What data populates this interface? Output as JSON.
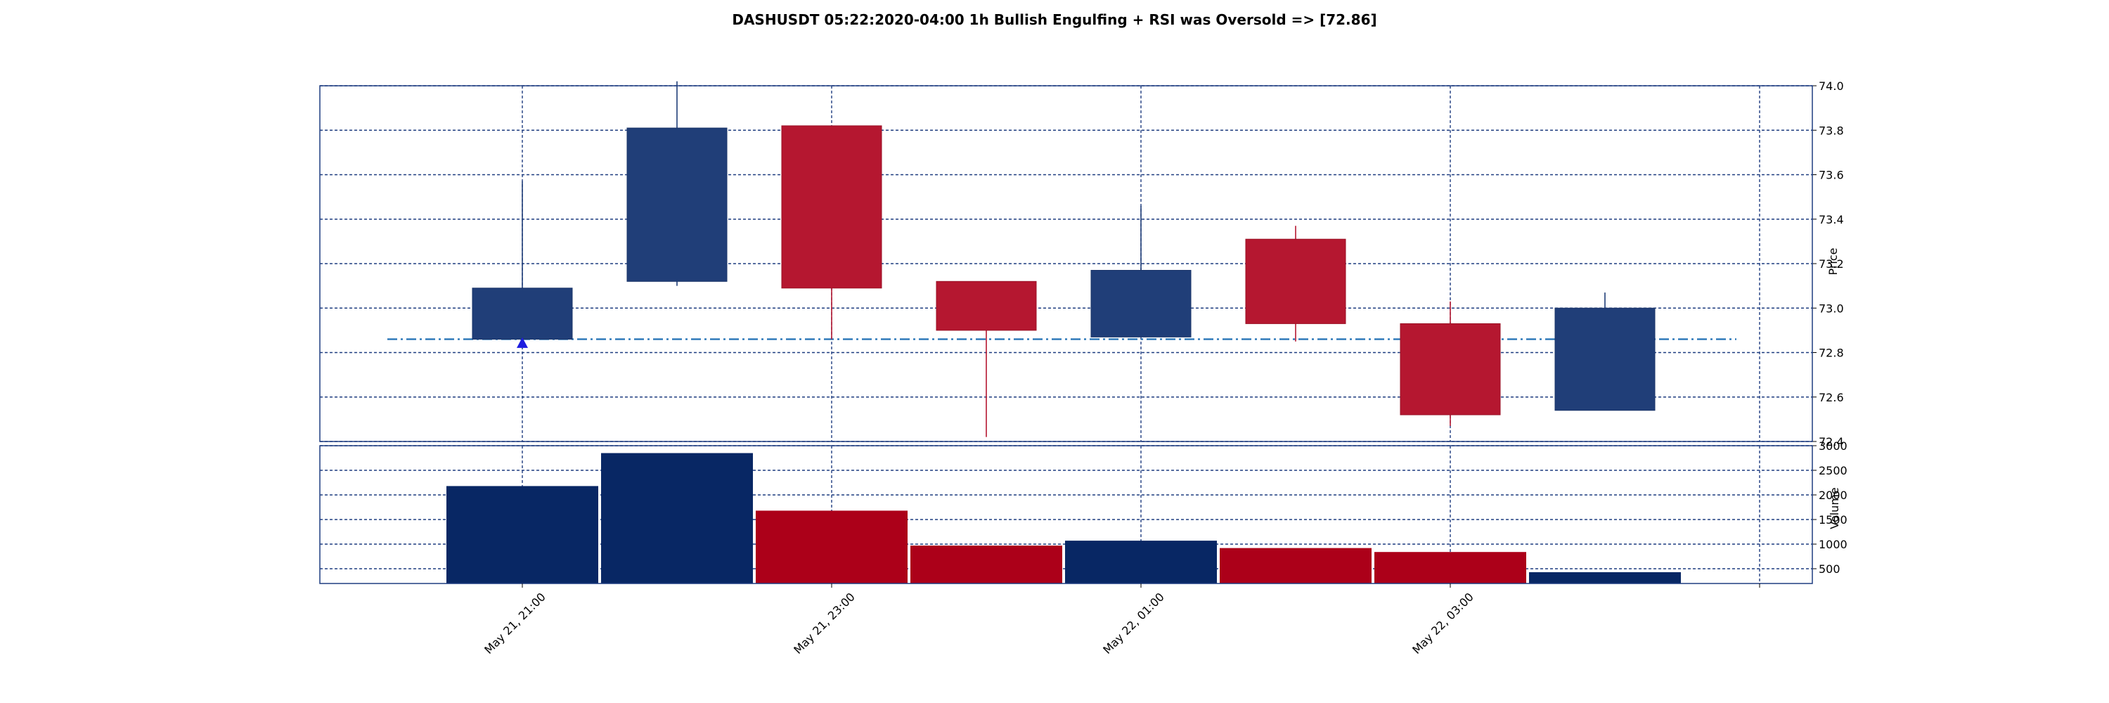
{
  "chart_data": {
    "type": "candlestick",
    "title": "DASHUSDT 05:22:2020-04:00 1h Bullish Engulfing + RSI was Oversold => [72.86]",
    "price_axis": {
      "label": "Price",
      "ylim": [
        72.4,
        74.0
      ],
      "ticks": [
        "72.4",
        "72.6",
        "72.8",
        "73.0",
        "73.2",
        "73.4",
        "73.6",
        "73.8",
        "74.0"
      ]
    },
    "volume_axis": {
      "label": "Volume",
      "ylim": [
        200,
        3000
      ],
      "ticks": [
        "500",
        "1000",
        "1500",
        "2000",
        "2500",
        "3000"
      ]
    },
    "x_tick_labels": [
      {
        "index": 0,
        "label": "May 21, 21:00"
      },
      {
        "index": 2,
        "label": "May 21, 23:00"
      },
      {
        "index": 4,
        "label": "May 22, 01:00"
      },
      {
        "index": 6,
        "label": "May 22, 03:00"
      }
    ],
    "x_grid_indices": [
      0,
      2,
      4,
      6,
      8
    ],
    "candles": [
      {
        "open": 72.86,
        "high": 73.57,
        "low": 72.84,
        "close": 73.09,
        "volume": 2180
      },
      {
        "open": 73.12,
        "high": 74.02,
        "low": 73.1,
        "close": 73.81,
        "volume": 2850
      },
      {
        "open": 73.82,
        "high": 73.82,
        "low": 72.86,
        "close": 73.09,
        "volume": 1680
      },
      {
        "open": 73.12,
        "high": 73.12,
        "low": 72.42,
        "close": 72.9,
        "volume": 970
      },
      {
        "open": 72.87,
        "high": 73.46,
        "low": 72.87,
        "close": 73.17,
        "volume": 1070
      },
      {
        "open": 73.31,
        "high": 73.37,
        "low": 72.85,
        "close": 72.93,
        "volume": 920
      },
      {
        "open": 72.93,
        "high": 73.03,
        "low": 72.47,
        "close": 72.52,
        "volume": 840
      },
      {
        "open": 72.54,
        "high": 73.07,
        "low": 72.54,
        "close": 73.0,
        "volume": 430
      }
    ],
    "signal_line": {
      "value": 72.86,
      "style": "dash-dot",
      "color": "#1f6fb4"
    },
    "signal_marker": {
      "index": 0,
      "value": 72.84,
      "shape": "triangle-up",
      "color": "#1d1de0"
    },
    "grid": true,
    "colors": {
      "up_body": "#203e78",
      "up_volume": "#082764",
      "down_body": "#b51730",
      "down_volume": "#ac0019",
      "grid": "#1f3d80"
    }
  }
}
